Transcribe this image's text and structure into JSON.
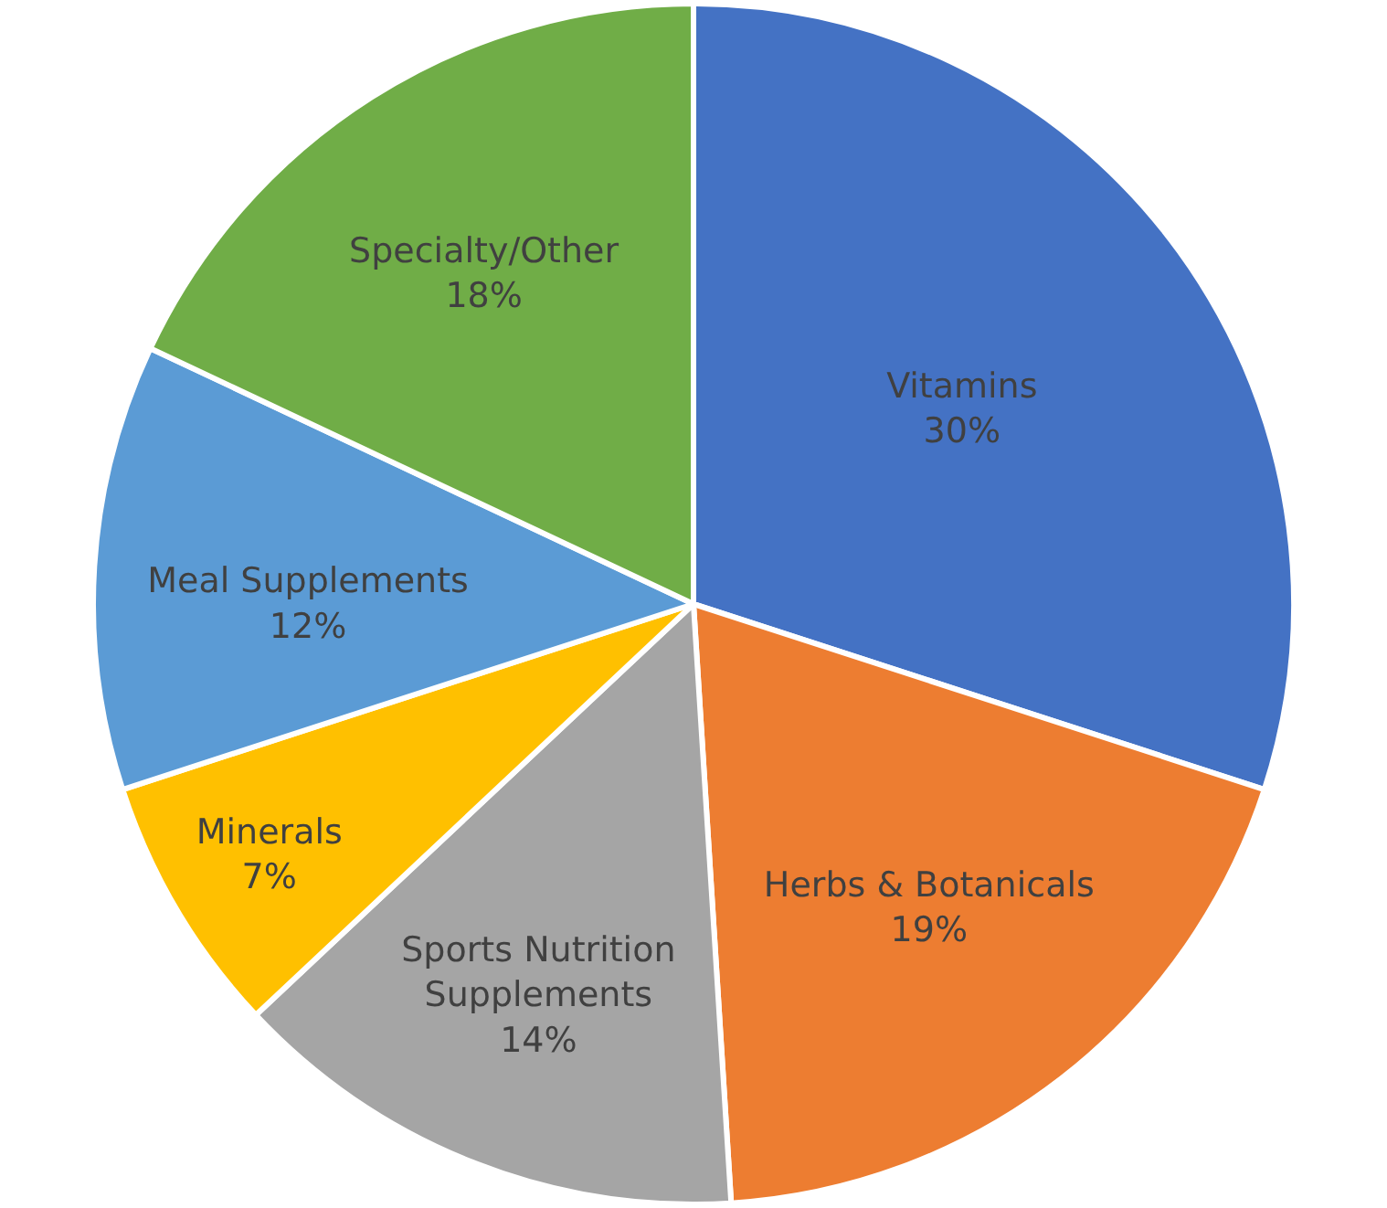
{
  "chart_data": {
    "type": "pie",
    "categories": [
      "Vitamins",
      "Herbs & Botanicals",
      "Sports Nutrition Supplements",
      "Minerals",
      "Meal Supplements",
      "Specialty/Other"
    ],
    "values": [
      30,
      19,
      14,
      7,
      12,
      18
    ],
    "value_labels": [
      "30%",
      "19%",
      "14%",
      "7%",
      "12%",
      "18%"
    ],
    "colors": [
      "#4472c4",
      "#ed7d31",
      "#a5a5a5",
      "#ffc000",
      "#5b9bd5",
      "#70ad47"
    ],
    "legend": false
  }
}
